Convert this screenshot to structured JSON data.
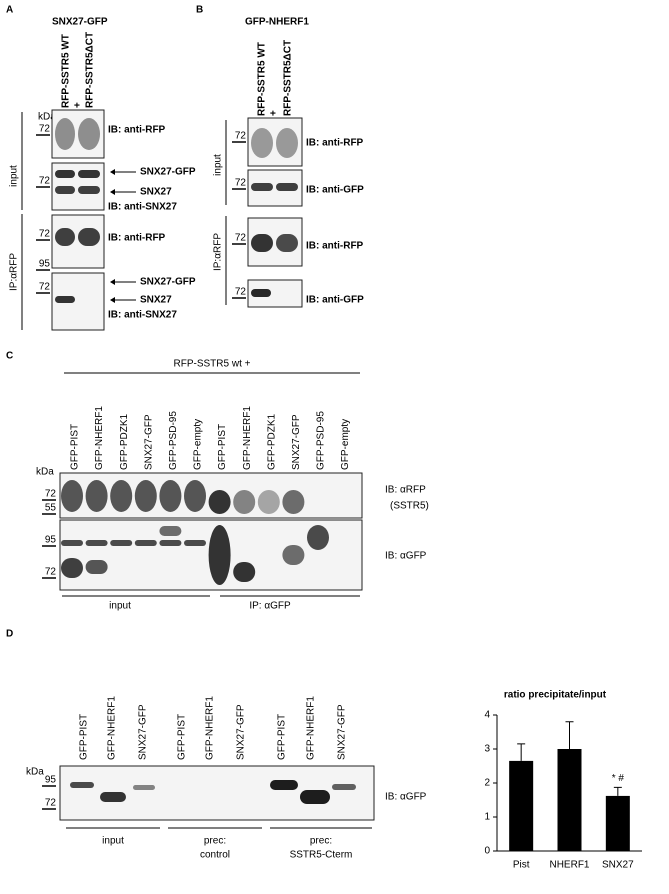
{
  "panel_A": {
    "label": "A",
    "construct": "SNX27-GFP",
    "lanes": [
      "RFP-SSTR5 WT",
      "+",
      "RFP-SSTR5ΔCT"
    ],
    "kda": "kDa",
    "markers": [
      72,
      72,
      72,
      95,
      72
    ],
    "groups": [
      "input",
      "IP:αRFP"
    ],
    "annotations": [
      "IB: anti-RFP",
      "SNX27-GFP",
      "SNX27",
      "IB: anti-SNX27",
      "IB: anti-RFP",
      "SNX27-GFP",
      "SNX27",
      "IB: anti-SNX27"
    ]
  },
  "panel_B": {
    "label": "B",
    "construct": "GFP-NHERF1",
    "lanes": [
      "RFP-SSTR5 WT",
      "+",
      "RFP-SSTR5ΔCT"
    ],
    "markers": [
      72,
      72,
      72,
      72
    ],
    "groups": [
      "input",
      "IP:αRFP"
    ],
    "annotations": [
      "IB: anti-RFP",
      "IB: anti-GFP",
      "IB: anti-RFP",
      "IB: anti-GFP"
    ]
  },
  "panel_C": {
    "label": "C",
    "header": "RFP-SSTR5 wt +",
    "lanes": [
      "GFP-PIST",
      "GFP-NHERF1",
      "GFP-PDZK1",
      "SNX27-GFP",
      "GFP-PSD-95",
      "GFP-empty",
      "GFP-PIST",
      "GFP-NHERF1",
      "GFP-PDZK1",
      "SNX27-GFP",
      "GFP-PSD-95",
      "GFP-empty"
    ],
    "kda": "kDa",
    "markers": [
      72,
      55,
      95,
      72
    ],
    "annotations": [
      "IB: αRFP",
      "(SSTR5)",
      "IB: αGFP"
    ],
    "groups": [
      "input",
      "IP: αGFP"
    ]
  },
  "panel_D": {
    "label": "D",
    "lanes": [
      "GFP-PIST",
      "GFP-NHERF1",
      "SNX27-GFP",
      "GFP-PIST",
      "GFP-NHERF1",
      "SNX27-GFP",
      "GFP-PIST",
      "GFP-NHERF1",
      "SNX27-GFP"
    ],
    "kda": "kDa",
    "markers": [
      95,
      72
    ],
    "annotations": [
      "IB: αGFP"
    ],
    "groups": [
      [
        "input"
      ],
      [
        "prec:",
        "control"
      ],
      [
        "prec:",
        "SSTR5-Cterm"
      ]
    ]
  },
  "chart_data": {
    "type": "bar",
    "title": "ratio precipitate/input",
    "categories": [
      "Pist",
      "NHERF1",
      "SNX27"
    ],
    "values": [
      2.65,
      3.0,
      1.62
    ],
    "errors": [
      0.5,
      0.8,
      0.25
    ],
    "color": "#000000",
    "ylim": [
      0,
      4
    ],
    "yticks": [
      0,
      1,
      2,
      3,
      4
    ],
    "annotation": "* #"
  }
}
